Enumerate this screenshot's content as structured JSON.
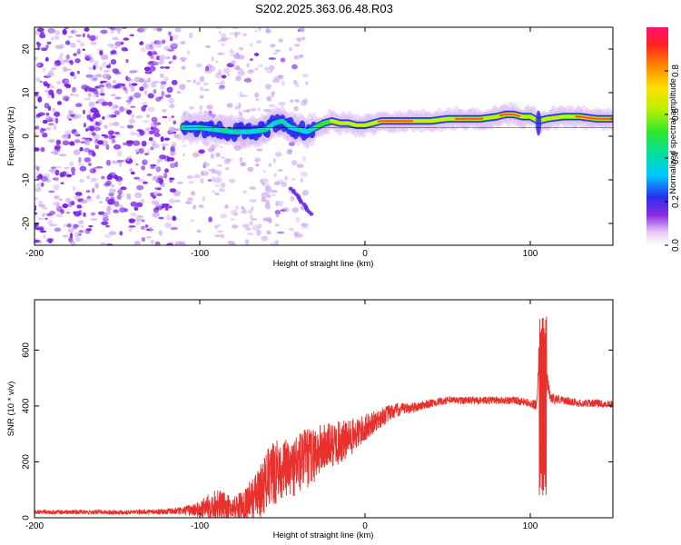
{
  "title": "S202.2025.363.06.48.R03",
  "colors": {
    "snr_line": "#e8302c",
    "noise_purple": "#7a1fe6",
    "frame": "#000000"
  },
  "chart_data": [
    {
      "type": "heatmap",
      "name": "spectrogram",
      "xlabel": "Height of straight line (km)",
      "ylabel": "Frequency (Hz)",
      "xlim": [
        -200,
        150
      ],
      "ylim": [
        -25,
        25
      ],
      "xticks": [
        "-200",
        "-100",
        "0",
        "100"
      ],
      "yticks": [
        "-20",
        "-10",
        "0",
        "10",
        "20"
      ],
      "colorbar": {
        "label": "Normalized spectral amplitude",
        "range": [
          0,
          1
        ],
        "ticks": [
          "0.0",
          "0.2",
          "0.4",
          "0.6",
          "0.8"
        ]
      },
      "signal_track": {
        "x": [
          -110,
          -100,
          -90,
          -80,
          -70,
          -60,
          -55,
          -50,
          -45,
          -40,
          -35,
          -30,
          -25,
          -20,
          -15,
          -10,
          -5,
          0,
          5,
          10,
          20,
          30,
          40,
          50,
          60,
          70,
          80,
          85,
          90,
          95,
          100,
          105,
          110,
          120,
          130,
          140,
          150
        ],
        "freq_hz": [
          2,
          2,
          1.5,
          1,
          1,
          1.5,
          3,
          3.5,
          2,
          1.5,
          1,
          2,
          3,
          3.5,
          3,
          3,
          2.5,
          2.5,
          3,
          3.5,
          3.5,
          3.5,
          3.5,
          4,
          4,
          4,
          4.5,
          5,
          5,
          4.5,
          4.5,
          3.5,
          4,
          4.5,
          4.5,
          4,
          4
        ]
      },
      "noise_region_x": [
        -200,
        -65
      ]
    },
    {
      "type": "line",
      "name": "snr",
      "xlabel": "Height of straight line (km)",
      "ylabel": "SNR (10 * v/v)",
      "xlim": [
        -200,
        150
      ],
      "ylim": [
        0,
        780
      ],
      "xticks": [
        "-200",
        "-100",
        "0",
        "100"
      ],
      "yticks": [
        "0",
        "200",
        "400",
        "600"
      ],
      "series": [
        {
          "name": "SNR",
          "x": [
            -200,
            -180,
            -160,
            -140,
            -120,
            -110,
            -100,
            -95,
            -90,
            -85,
            -80,
            -75,
            -70,
            -65,
            -60,
            -55,
            -50,
            -45,
            -40,
            -35,
            -30,
            -25,
            -20,
            -15,
            -10,
            -5,
            0,
            5,
            10,
            15,
            20,
            25,
            30,
            40,
            50,
            60,
            70,
            80,
            90,
            100,
            104,
            106,
            107,
            108,
            109,
            110,
            112,
            120,
            130,
            140,
            150
          ],
          "y": [
            20,
            20,
            20,
            20,
            22,
            25,
            30,
            40,
            50,
            40,
            35,
            45,
            60,
            80,
            130,
            160,
            180,
            170,
            200,
            210,
            230,
            250,
            260,
            270,
            280,
            300,
            320,
            340,
            360,
            375,
            385,
            390,
            395,
            410,
            420,
            420,
            420,
            420,
            420,
            410,
            400,
            700,
            100,
            720,
            80,
            500,
            430,
            420,
            410,
            410,
            405
          ],
          "noise_amplitude": [
            8,
            8,
            8,
            8,
            10,
            15,
            30,
            45,
            60,
            50,
            40,
            50,
            70,
            90,
            110,
            120,
            110,
            100,
            120,
            110,
            100,
            90,
            80,
            80,
            70,
            60,
            50,
            40,
            35,
            30,
            25,
            20,
            18,
            15,
            14,
            14,
            14,
            14,
            14,
            14,
            20,
            40,
            40,
            40,
            40,
            30,
            20,
            14,
            14,
            14,
            14
          ]
        }
      ]
    }
  ]
}
